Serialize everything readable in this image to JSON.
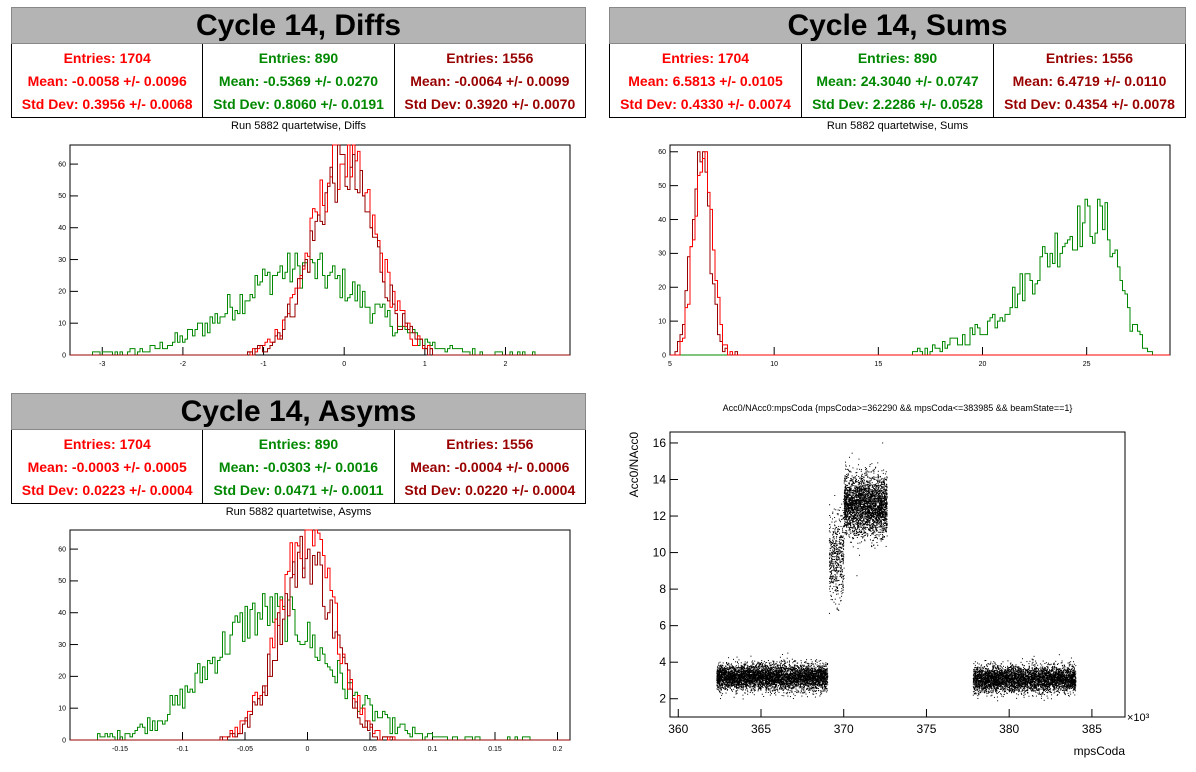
{
  "panels": {
    "diffs": {
      "title": "Cycle 14, Diffs",
      "subtitle": "Run 5882 quartetwise, Diffs",
      "stats": [
        {
          "entries": "Entries: 1704",
          "mean": "Mean: -0.0058 +/- 0.0096",
          "std": "Std Dev: 0.3956 +/- 0.0068",
          "color": "#ff0000"
        },
        {
          "entries": "Entries: 890",
          "mean": "Mean: -0.5369 +/- 0.0270",
          "std": "Std Dev: 0.8060 +/- 0.0191",
          "color": "#008800"
        },
        {
          "entries": "Entries: 1556",
          "mean": "Mean: -0.0064 +/- 0.0099",
          "std": "Std Dev: 0.3920 +/- 0.0070",
          "color": "#990000"
        }
      ]
    },
    "sums": {
      "title": "Cycle 14, Sums",
      "subtitle": "Run 5882 quartetwise, Sums",
      "stats": [
        {
          "entries": "Entries: 1704",
          "mean": "Mean: 6.5813 +/- 0.0105",
          "std": "Std Dev: 0.4330 +/- 0.0074",
          "color": "#ff0000"
        },
        {
          "entries": "Entries: 890",
          "mean": "Mean: 24.3040 +/- 0.0747",
          "std": "Std Dev: 2.2286 +/- 0.0528",
          "color": "#008800"
        },
        {
          "entries": "Entries: 1556",
          "mean": "Mean: 6.4719 +/- 0.0110",
          "std": "Std Dev: 0.4354 +/- 0.0078",
          "color": "#990000"
        }
      ]
    },
    "asyms": {
      "title": "Cycle 14, Asyms",
      "subtitle": "Run 5882 quartetwise, Asyms",
      "stats": [
        {
          "entries": "Entries: 1704",
          "mean": "Mean: -0.0003 +/- 0.0005",
          "std": "Std Dev: 0.0223 +/- 0.0004",
          "color": "#ff0000"
        },
        {
          "entries": "Entries: 890",
          "mean": "Mean: -0.0303 +/- 0.0016",
          "std": "Std Dev: 0.0471 +/- 0.0011",
          "color": "#008800"
        },
        {
          "entries": "Entries: 1556",
          "mean": "Mean: -0.0004 +/- 0.0006",
          "std": "Std Dev: 0.0220 +/- 0.0004",
          "color": "#990000"
        }
      ]
    }
  },
  "chart_data": [
    {
      "type": "histogram",
      "name": "diffs",
      "xlim": [
        -3.4,
        2.8
      ],
      "ylim": [
        0,
        66
      ],
      "xticks": [
        -3,
        -2,
        -1,
        0,
        1,
        2
      ],
      "yticks": [
        0,
        10,
        20,
        30,
        40,
        50,
        60
      ],
      "series": [
        {
          "color": "#008800",
          "mean": -0.5369,
          "sigma": 0.806,
          "peak": 27,
          "range": [
            -3.2,
            2.4
          ]
        },
        {
          "color": "#ff0000",
          "mean": -0.0058,
          "sigma": 0.3956,
          "peak": 62,
          "range": [
            -1.2,
            1.1
          ]
        },
        {
          "color": "#990000",
          "mean": -0.0064,
          "sigma": 0.392,
          "peak": 58,
          "range": [
            -1.2,
            1.1
          ]
        }
      ]
    },
    {
      "type": "histogram",
      "name": "sums",
      "xlim": [
        5,
        29
      ],
      "ylim": [
        0,
        62
      ],
      "xticks": [
        5,
        10,
        15,
        20,
        25
      ],
      "yticks": [
        0,
        10,
        20,
        30,
        40,
        50,
        60
      ],
      "series": [
        {
          "color": "#008800",
          "mean": 24.304,
          "sigma": 2.2286,
          "peak": 40,
          "range": [
            16.5,
            28.3
          ],
          "skew": true
        },
        {
          "color": "#990000",
          "mean": 6.4719,
          "sigma": 0.4354,
          "peak": 56,
          "range": [
            5.2,
            8.2
          ]
        },
        {
          "color": "#ff0000",
          "mean": 6.5813,
          "sigma": 0.433,
          "peak": 60,
          "range": [
            5.2,
            8.2
          ]
        }
      ]
    },
    {
      "type": "histogram",
      "name": "asyms",
      "xlim": [
        -0.19,
        0.21
      ],
      "ylim": [
        0,
        66
      ],
      "xticks": [
        -0.15,
        -0.1,
        -0.05,
        0,
        0.05,
        0.1,
        0.15,
        0.2
      ],
      "yticks": [
        0,
        10,
        20,
        30,
        40,
        50,
        60
      ],
      "xticklabels": [
        "-0.15",
        "-0.1",
        "-0.05",
        "0",
        "0.05",
        "0.1",
        "0.15",
        "0.2"
      ],
      "series": [
        {
          "color": "#008800",
          "mean": -0.0303,
          "sigma": 0.0471,
          "peak": 40,
          "range": [
            -0.17,
            0.18
          ]
        },
        {
          "color": "#ff0000",
          "mean": -0.0003,
          "sigma": 0.0223,
          "peak": 64,
          "range": [
            -0.07,
            0.07
          ]
        },
        {
          "color": "#990000",
          "mean": -0.0004,
          "sigma": 0.022,
          "peak": 58,
          "range": [
            -0.07,
            0.07
          ]
        }
      ]
    },
    {
      "type": "scatter",
      "name": "acc0",
      "title": "Acc0/NAcc0:mpsCoda {mpsCoda>=362290 && mpsCoda<=383985 && beamState==1}",
      "xlabel": "mpsCoda",
      "ylabel": "Acc0/NAcc0",
      "xexponent": "×10³",
      "xlim": [
        359.5,
        387
      ],
      "ylim": [
        1,
        16.6
      ],
      "xticks": [
        360,
        365,
        370,
        375,
        380,
        385
      ],
      "yticks": [
        2,
        4,
        6,
        8,
        10,
        12,
        14,
        16
      ],
      "clusters": [
        {
          "x": [
            362.3,
            369.0
          ],
          "y_center": 3.2,
          "y_sigma": 0.35,
          "n": 5200
        },
        {
          "x": [
            369.1,
            370.0
          ],
          "y_center": 9.8,
          "y_sigma": 1.2,
          "n": 500
        },
        {
          "x": [
            370.0,
            372.6
          ],
          "y_center": 12.6,
          "y_sigma": 0.8,
          "n": 3000
        },
        {
          "x": [
            377.8,
            384.0
          ],
          "y_center": 3.1,
          "y_sigma": 0.35,
          "n": 4500
        }
      ]
    }
  ]
}
